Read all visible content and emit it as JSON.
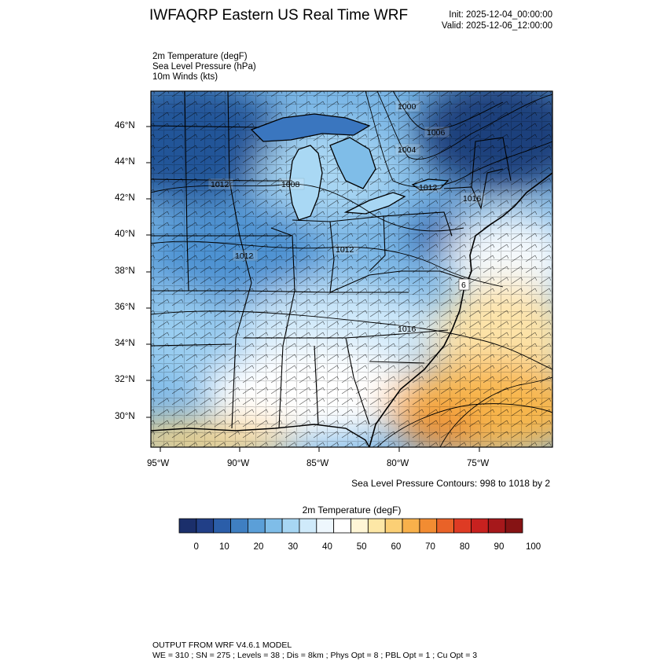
{
  "header": {
    "title": "IWFAQRP Eastern US Real Time WRF",
    "init": "Init: 2025-12-04_00:00:00",
    "valid": "Valid: 2025-12-06_12:00:00"
  },
  "variables": [
    "2m Temperature   (degF)",
    "Sea Level Pressure   (hPa)",
    "10m Winds   (kts)"
  ],
  "map": {
    "lat_labels": [
      "46°N",
      "44°N",
      "42°N",
      "40°N",
      "38°N",
      "36°N",
      "34°N",
      "32°N",
      "30°N"
    ],
    "lon_labels": [
      "95°W",
      "90°W",
      "85°W",
      "80°W",
      "75°W"
    ],
    "pressure_labels": [
      "1000",
      "1006",
      "1004",
      "1012",
      "1008",
      "1012",
      "1012",
      "1012",
      "1016",
      "1016",
      "6"
    ],
    "colors": {
      "cold_deep": "#1f3f7a",
      "cold": "#4a8ccf",
      "cool": "#a6d4f2",
      "neutral": "#ffffff",
      "warm": "#f5b74a",
      "hot": "#e8702a"
    }
  },
  "contour_note": "Sea Level Pressure Contours: 998 to 1018 by 2",
  "colorbar": {
    "title": "2m Temperature  (degF)",
    "colors": [
      "#1b2f6b",
      "#213f87",
      "#2b5ea9",
      "#3f7fc2",
      "#5b9fd8",
      "#7fbde8",
      "#a7d6f3",
      "#cfeafa",
      "#eef7fd",
      "#ffffff",
      "#fff6d6",
      "#fde7a6",
      "#fbcf75",
      "#f8b14b",
      "#f28c32",
      "#e96228",
      "#de3b24",
      "#c8211f",
      "#a6181b",
      "#861314"
    ],
    "labels": [
      "0",
      "10",
      "20",
      "30",
      "40",
      "50",
      "60",
      "70",
      "80",
      "90",
      "100"
    ]
  },
  "footer": {
    "line1": "OUTPUT FROM WRF V4.6.1 MODEL",
    "line2": "WE = 310 ; SN = 275 ; Levels = 38 ; Dis = 8km ; Phys Opt = 8 ; PBL Opt = 1 ; Cu Opt = 3"
  }
}
